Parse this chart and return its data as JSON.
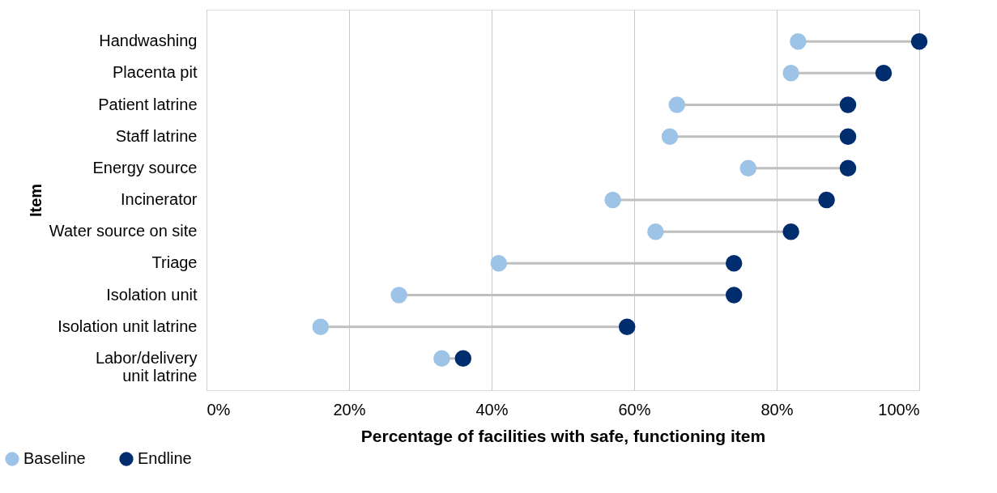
{
  "chart_data": {
    "type": "scatter",
    "orientation": "horizontal",
    "xlabel": "Percentage of facilities with safe, functioning item",
    "ylabel": "Item",
    "categories": [
      "Handwashing",
      "Placenta pit",
      "Patient latrine",
      "Staff latrine",
      "Energy source",
      "Incinerator",
      "Water source on site",
      "Triage",
      "Isolation unit",
      "Isolation unit latrine",
      "Labor/delivery unit latrine"
    ],
    "series": [
      {
        "name": "Baseline",
        "color": "#9dc3e6",
        "values": [
          83,
          82,
          66,
          65,
          76,
          57,
          63,
          41,
          27,
          16,
          33
        ]
      },
      {
        "name": "Endline",
        "color": "#002d6e",
        "values": [
          100,
          95,
          90,
          90,
          90,
          87,
          82,
          74,
          74,
          59,
          36
        ]
      }
    ],
    "xlim": [
      0,
      100
    ],
    "xticks": [
      {
        "value": 0,
        "label": "0%"
      },
      {
        "value": 20,
        "label": "20%"
      },
      {
        "value": 40,
        "label": "40%"
      },
      {
        "value": 60,
        "label": "60%"
      },
      {
        "value": 80,
        "label": "80%"
      },
      {
        "value": 100,
        "label": "100%"
      }
    ],
    "grid": "x",
    "legend": "bottom left",
    "marker": "circle"
  }
}
